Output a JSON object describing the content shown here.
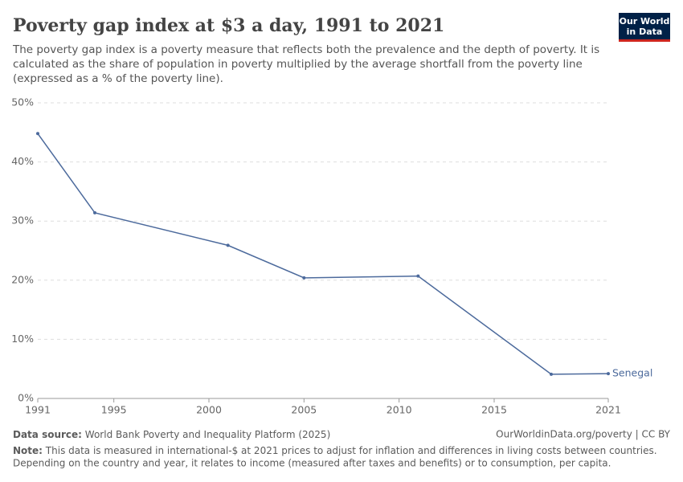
{
  "header": {
    "logo": [
      "Our World",
      "in Data"
    ]
  },
  "chart_data": {
    "type": "line",
    "title": "Poverty gap index at $3 a day, 1991 to 2021",
    "subtitle": [
      "The poverty gap index is a poverty measure that reflects both the prevalence and the depth of poverty. It is",
      "calculated as the share of population in poverty multiplied by the average shortfall from the poverty line",
      "(expressed as a % of the poverty line)."
    ],
    "x": [
      1991,
      1994,
      2001,
      2005,
      2011,
      2018,
      2021
    ],
    "series": [
      {
        "name": "Senegal",
        "color": "#4c6a9c",
        "values": [
          44.8,
          31.4,
          25.9,
          20.4,
          20.7,
          4.1,
          4.2
        ]
      }
    ],
    "xlim": [
      1991,
      2021
    ],
    "xticks": [
      1991,
      1995,
      2000,
      2005,
      2010,
      2015,
      2021
    ],
    "ylim": [
      0,
      50
    ],
    "yticks": [
      {
        "value": 0,
        "label": "0%"
      },
      {
        "value": 10,
        "label": "10%"
      },
      {
        "value": 20,
        "label": "20%"
      },
      {
        "value": 30,
        "label": "30%"
      },
      {
        "value": 40,
        "label": "40%"
      },
      {
        "value": 50,
        "label": "50%"
      }
    ],
    "grid": true
  },
  "footer": {
    "source_label": "Data source:",
    "source": "World Bank Poverty and Inequality Platform (2025)",
    "link": "OurWorldinData.org/poverty | CC BY",
    "note_label": "Note:",
    "note": [
      "This data is measured in international-$ at 2021 prices to adjust for inflation and differences in living costs between countries.",
      "Depending on the country and year, it relates to income (measured after taxes and benefits) or to consumption, per capita."
    ]
  }
}
